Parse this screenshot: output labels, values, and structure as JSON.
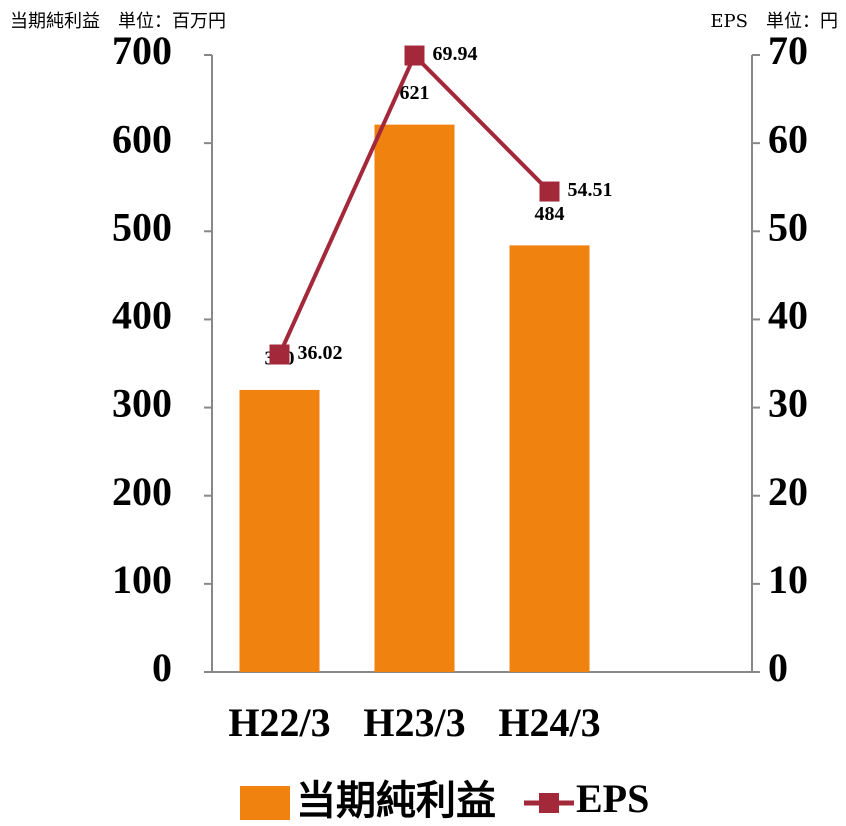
{
  "chart_data": {
    "type": "bar-line",
    "y_axis_label": "当期純利益　単位：百万円",
    "y2_axis_label": "EPS　単位：円",
    "categories": [
      "H22/3",
      "H23/3",
      "H24/3"
    ],
    "series": [
      {
        "name": "当期純利益",
        "type": "bar",
        "color": "#f0820f",
        "values": [
          320,
          621,
          484
        ]
      },
      {
        "name": "EPS",
        "type": "line",
        "axis": "y2",
        "color": "#a3283a",
        "values": [
          36.02,
          69.94,
          54.51
        ]
      }
    ],
    "ylim": [
      0,
      700
    ],
    "yticks": [
      0,
      100,
      200,
      300,
      400,
      500,
      600,
      700
    ],
    "y2lim": [
      0,
      70
    ],
    "y2ticks": [
      0,
      10,
      20,
      30,
      40,
      50,
      60,
      70
    ]
  }
}
